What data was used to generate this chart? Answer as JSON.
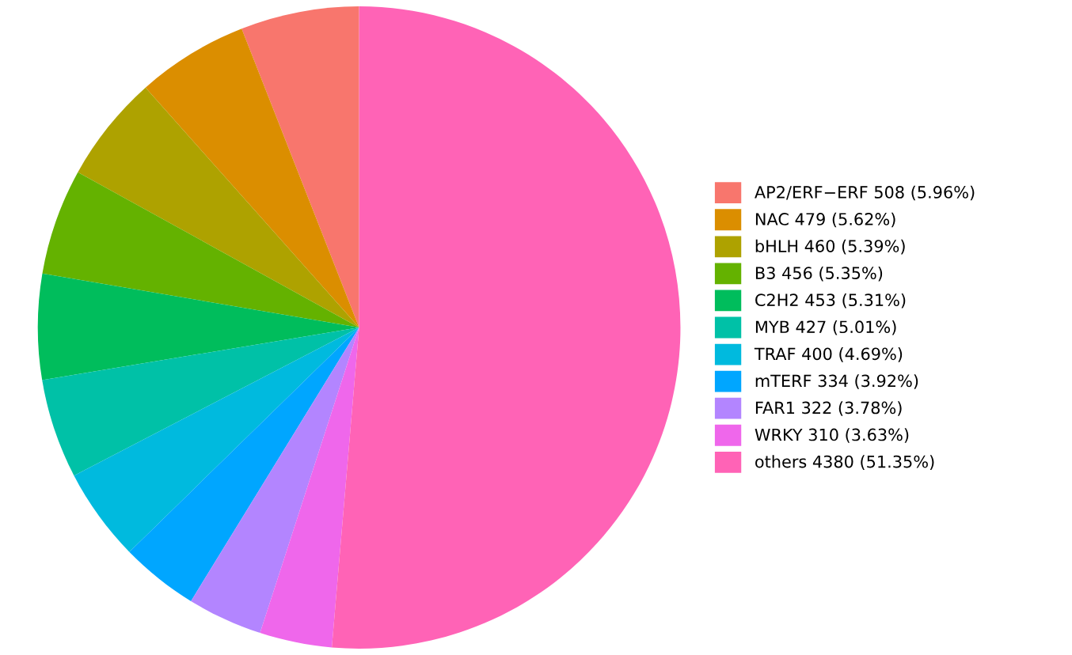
{
  "chart_data": {
    "type": "pie",
    "categories": [
      "AP2/ERF−ERF 508 (5.96%)",
      "NAC 479 (5.62%)",
      "bHLH 460 (5.39%)",
      "B3 456 (5.35%)",
      "C2H2 453 (5.31%)",
      "MYB 427 (5.01%)",
      "TRAF 400 (4.69%)",
      "mTERF 334 (3.92%)",
      "FAR1 322 (3.78%)",
      "WRKY 310 (3.63%)",
      "others 4380 (51.35%)"
    ],
    "values": [
      508,
      479,
      460,
      456,
      453,
      427,
      400,
      334,
      322,
      310,
      4380
    ],
    "colors": [
      "#F8766D",
      "#DB8E00",
      "#AEA200",
      "#64B200",
      "#00BD5C",
      "#00C1A7",
      "#00BADE",
      "#00A6FF",
      "#B385FF",
      "#EF67EB",
      "#FF63B6"
    ],
    "legend": "right"
  }
}
